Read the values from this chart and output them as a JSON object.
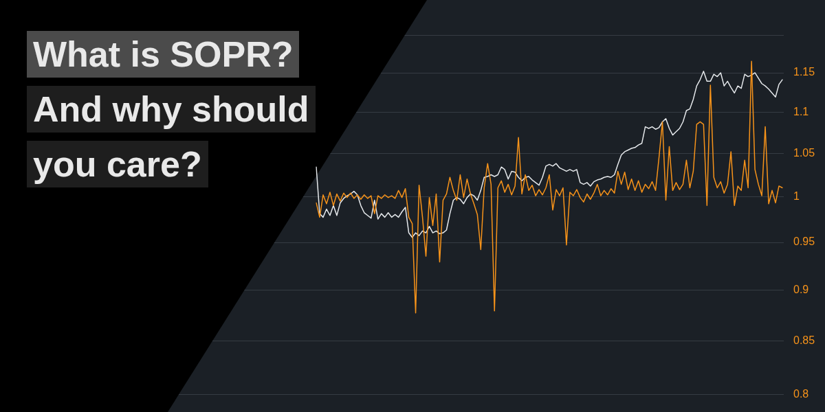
{
  "chart_data": {
    "type": "line",
    "title": "What is SOPR? And why should you care?",
    "categories": [
      null,
      null,
      null,
      null,
      null,
      null,
      null,
      null,
      null,
      null,
      null,
      null,
      null,
      null,
      null,
      null,
      null,
      null,
      null,
      null,
      null,
      null,
      null,
      null,
      null,
      null,
      null,
      null,
      null,
      null,
      null,
      null,
      null,
      null,
      null,
      null,
      null,
      null,
      null,
      null,
      null,
      null,
      null,
      null,
      null,
      null,
      null,
      null,
      null,
      null,
      null,
      null,
      null,
      null,
      null,
      null,
      null,
      null,
      null,
      null,
      null,
      null,
      null,
      null,
      null,
      null,
      null,
      null,
      null,
      null,
      null,
      null,
      null,
      null,
      null,
      null,
      null,
      null,
      null,
      null,
      null,
      null,
      null,
      null,
      null,
      null,
      null,
      null,
      null,
      null,
      null,
      null,
      null,
      null,
      null,
      null,
      null,
      null,
      null,
      null,
      null,
      null,
      null,
      null,
      null,
      null,
      null,
      null,
      null,
      null,
      null,
      null,
      null,
      null,
      null,
      null,
      null,
      null,
      null,
      null,
      null,
      null,
      null,
      null,
      null,
      null,
      null,
      null,
      null,
      null,
      null,
      null,
      null,
      null,
      null,
      null,
      null
    ],
    "series": [
      {
        "color": "#f7931a",
        "values": [
          0.993,
          0.977,
          1.002,
          0.992,
          1.005,
          0.99,
          1.003,
          0.995,
          1.004,
          0.999,
          1.004,
          0.998,
          1.002,
          0.997,
          1.002,
          0.998,
          1.001,
          0.981,
          1.001,
          0.998,
          1.002,
          0.999,
          1.001,
          0.998,
          1.007,
          0.999,
          1.009,
          0.977,
          0.97,
          0.877,
          1.013,
          0.977,
          0.935,
          0.999,
          0.968,
          1.003,
          0.929,
          0.996,
          1.003,
          1.022,
          1.007,
          0.996,
          1.025,
          0.999,
          1.02,
          1.003,
          0.992,
          0.98,
          0.942,
          1.01,
          1.038,
          1.014,
          0.879,
          1.01,
          1.018,
          1.005,
          1.014,
          1.002,
          1.012,
          1.069,
          1.003,
          1.025,
          1.007,
          1.013,
          1.001,
          1.008,
          1.002,
          1.01,
          1.025,
          0.985,
          1.008,
          1.001,
          1.01,
          0.947,
          1.005,
          1.001,
          1.008,
          0.999,
          0.994,
          1.003,
          0.997,
          1.004,
          1.014,
          1.001,
          1.007,
          1.002,
          1.009,
          1.004,
          1.029,
          1.014,
          1.028,
          1.008,
          1.02,
          1.007,
          1.018,
          1.005,
          1.014,
          1.009,
          1.017,
          1.007,
          1.045,
          1.088,
          0.996,
          1.058,
          1.007,
          1.016,
          1.008,
          1.014,
          1.042,
          1.01,
          1.029,
          1.085,
          1.088,
          1.085,
          0.99,
          1.134,
          1.022,
          1.01,
          1.017,
          1.004,
          1.014,
          1.052,
          0.99,
          1.012,
          1.007,
          1.042,
          1.01,
          1.165,
          1.031,
          1.014,
          1.001,
          1.082,
          0.992,
          1.007,
          0.993,
          1.012,
          1.01
        ]
      },
      {
        "color": "#e6e9ec",
        "values": [
          1.034,
          0.981,
          0.977,
          0.986,
          0.979,
          0.99,
          0.979,
          0.993,
          0.998,
          1.001,
          1.003,
          1.006,
          1.002,
          0.99,
          0.982,
          0.979,
          0.976,
          0.996,
          0.975,
          0.981,
          0.977,
          0.982,
          0.977,
          0.98,
          0.977,
          0.983,
          0.988,
          0.96,
          0.955,
          0.96,
          0.957,
          0.962,
          0.96,
          0.967,
          0.96,
          0.962,
          0.959,
          0.96,
          0.963,
          0.981,
          0.996,
          0.999,
          0.997,
          0.992,
          0.999,
          1.003,
          1.001,
          0.996,
          1.007,
          1.022,
          1.023,
          1.025,
          1.023,
          1.025,
          1.034,
          1.031,
          1.02,
          1.029,
          1.028,
          1.022,
          1.018,
          1.022,
          1.023,
          1.019,
          1.016,
          1.013,
          1.022,
          1.035,
          1.037,
          1.035,
          1.038,
          1.033,
          1.031,
          1.029,
          1.031,
          1.029,
          1.031,
          1.016,
          1.014,
          1.016,
          1.012,
          1.017,
          1.019,
          1.02,
          1.022,
          1.023,
          1.022,
          1.025,
          1.037,
          1.048,
          1.052,
          1.054,
          1.056,
          1.057,
          1.06,
          1.062,
          1.082,
          1.08,
          1.082,
          1.079,
          1.081,
          1.088,
          1.092,
          1.08,
          1.072,
          1.076,
          1.08,
          1.088,
          1.102,
          1.104,
          1.116,
          1.133,
          1.141,
          1.152,
          1.139,
          1.139,
          1.148,
          1.145,
          1.15,
          1.133,
          1.139,
          1.131,
          1.124,
          1.133,
          1.13,
          1.148,
          1.145,
          1.147,
          1.15,
          1.143,
          1.136,
          1.133,
          1.129,
          1.124,
          1.119,
          1.135,
          1.141
        ]
      }
    ],
    "ylim": [
      0.8,
      1.2
    ],
    "yticks": [
      0.8,
      0.85,
      0.9,
      0.95,
      1,
      1.05,
      1.1,
      1.15,
      {
        "value": 1.2,
        "label": null
      }
    ],
    "log": true,
    "grid": "y",
    "tick_labels": "y",
    "marker": "none",
    "line_style": "solid"
  }
}
